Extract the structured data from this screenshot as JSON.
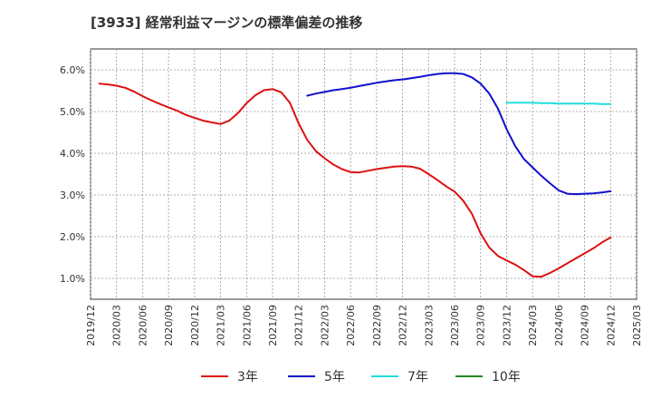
{
  "title": "[3933]  経常利益マージンの標準偏差の推移",
  "chart_data": {
    "type": "line",
    "title": "[3933]  経常利益マージンの標準偏差の推移",
    "xlabel": "",
    "ylabel": "",
    "ylim": [
      0.5,
      6.5
    ],
    "yticks": [
      "1.0%",
      "2.0%",
      "3.0%",
      "4.0%",
      "5.0%",
      "6.0%"
    ],
    "ytick_values": [
      1.0,
      2.0,
      3.0,
      4.0,
      5.0,
      6.0
    ],
    "xticks": [
      "2019/12",
      "2020/03",
      "2020/06",
      "2020/09",
      "2020/12",
      "2021/03",
      "2021/06",
      "2021/09",
      "2021/12",
      "2022/03",
      "2022/06",
      "2022/09",
      "2022/12",
      "2023/03",
      "2023/06",
      "2023/09",
      "2023/12",
      "2024/03",
      "2024/06",
      "2024/09",
      "2024/12",
      "2025/03"
    ],
    "grid": true,
    "legend_position": "bottom",
    "series": [
      {
        "name": "3年",
        "color": "#dd1111",
        "points": [
          [
            "2020/01",
            5.67
          ],
          [
            "2020/02",
            5.65
          ],
          [
            "2020/03",
            5.62
          ],
          [
            "2020/04",
            5.57
          ],
          [
            "2020/05",
            5.48
          ],
          [
            "2020/06",
            5.37
          ],
          [
            "2020/07",
            5.27
          ],
          [
            "2020/08",
            5.18
          ],
          [
            "2020/09",
            5.1
          ],
          [
            "2020/10",
            5.02
          ],
          [
            "2020/11",
            4.92
          ],
          [
            "2020/12",
            4.85
          ],
          [
            "2021/01",
            4.78
          ],
          [
            "2021/02",
            4.74
          ],
          [
            "2021/03",
            4.7
          ],
          [
            "2021/04",
            4.78
          ],
          [
            "2021/05",
            4.96
          ],
          [
            "2021/06",
            5.2
          ],
          [
            "2021/07",
            5.39
          ],
          [
            "2021/08",
            5.51
          ],
          [
            "2021/09",
            5.54
          ],
          [
            "2021/10",
            5.46
          ],
          [
            "2021/11",
            5.21
          ],
          [
            "2021/12",
            4.72
          ],
          [
            "2022/01",
            4.32
          ],
          [
            "2022/02",
            4.05
          ],
          [
            "2022/03",
            3.88
          ],
          [
            "2022/04",
            3.73
          ],
          [
            "2022/05",
            3.62
          ],
          [
            "2022/06",
            3.55
          ],
          [
            "2022/07",
            3.54
          ],
          [
            "2022/08",
            3.58
          ],
          [
            "2022/09",
            3.62
          ],
          [
            "2022/10",
            3.65
          ],
          [
            "2022/11",
            3.68
          ],
          [
            "2022/12",
            3.69
          ],
          [
            "2023/01",
            3.68
          ],
          [
            "2023/02",
            3.63
          ],
          [
            "2023/03",
            3.5
          ],
          [
            "2023/04",
            3.36
          ],
          [
            "2023/05",
            3.21
          ],
          [
            "2023/06",
            3.08
          ],
          [
            "2023/07",
            2.86
          ],
          [
            "2023/08",
            2.55
          ],
          [
            "2023/09",
            2.08
          ],
          [
            "2023/10",
            1.74
          ],
          [
            "2023/11",
            1.54
          ],
          [
            "2023/12",
            1.43
          ],
          [
            "2024/01",
            1.33
          ],
          [
            "2024/02",
            1.2
          ],
          [
            "2024/03",
            1.05
          ],
          [
            "2024/04",
            1.04
          ],
          [
            "2024/05",
            1.13
          ],
          [
            "2024/06",
            1.24
          ],
          [
            "2024/07",
            1.36
          ],
          [
            "2024/08",
            1.48
          ],
          [
            "2024/09",
            1.6
          ],
          [
            "2024/10",
            1.72
          ],
          [
            "2024/11",
            1.86
          ],
          [
            "2024/12",
            1.98
          ]
        ]
      },
      {
        "name": "5年",
        "color": "#1111cc",
        "points": [
          [
            "2022/01",
            5.38
          ],
          [
            "2022/02",
            5.43
          ],
          [
            "2022/03",
            5.47
          ],
          [
            "2022/04",
            5.51
          ],
          [
            "2022/05",
            5.54
          ],
          [
            "2022/06",
            5.57
          ],
          [
            "2022/07",
            5.61
          ],
          [
            "2022/08",
            5.65
          ],
          [
            "2022/09",
            5.69
          ],
          [
            "2022/10",
            5.72
          ],
          [
            "2022/11",
            5.75
          ],
          [
            "2022/12",
            5.77
          ],
          [
            "2023/01",
            5.8
          ],
          [
            "2023/02",
            5.83
          ],
          [
            "2023/03",
            5.87
          ],
          [
            "2023/04",
            5.9
          ],
          [
            "2023/05",
            5.92
          ],
          [
            "2023/06",
            5.92
          ],
          [
            "2023/07",
            5.9
          ],
          [
            "2023/08",
            5.82
          ],
          [
            "2023/09",
            5.67
          ],
          [
            "2023/10",
            5.43
          ],
          [
            "2023/11",
            5.07
          ],
          [
            "2023/12",
            4.58
          ],
          [
            "2024/01",
            4.17
          ],
          [
            "2024/02",
            3.86
          ],
          [
            "2024/03",
            3.66
          ],
          [
            "2024/04",
            3.46
          ],
          [
            "2024/05",
            3.28
          ],
          [
            "2024/06",
            3.11
          ],
          [
            "2024/07",
            3.03
          ],
          [
            "2024/08",
            3.02
          ],
          [
            "2024/09",
            3.03
          ],
          [
            "2024/10",
            3.04
          ],
          [
            "2024/11",
            3.06
          ],
          [
            "2024/12",
            3.09
          ]
        ]
      },
      {
        "name": "7年",
        "color": "#22dddd",
        "points": [
          [
            "2023/12",
            5.21
          ],
          [
            "2024/01",
            5.21
          ],
          [
            "2024/02",
            5.21
          ],
          [
            "2024/03",
            5.21
          ],
          [
            "2024/04",
            5.2
          ],
          [
            "2024/05",
            5.2
          ],
          [
            "2024/06",
            5.19
          ],
          [
            "2024/07",
            5.19
          ],
          [
            "2024/08",
            5.19
          ],
          [
            "2024/09",
            5.19
          ],
          [
            "2024/10",
            5.19
          ],
          [
            "2024/11",
            5.18
          ],
          [
            "2024/12",
            5.18
          ]
        ]
      },
      {
        "name": "10年",
        "color": "#228822",
        "points": []
      }
    ]
  }
}
